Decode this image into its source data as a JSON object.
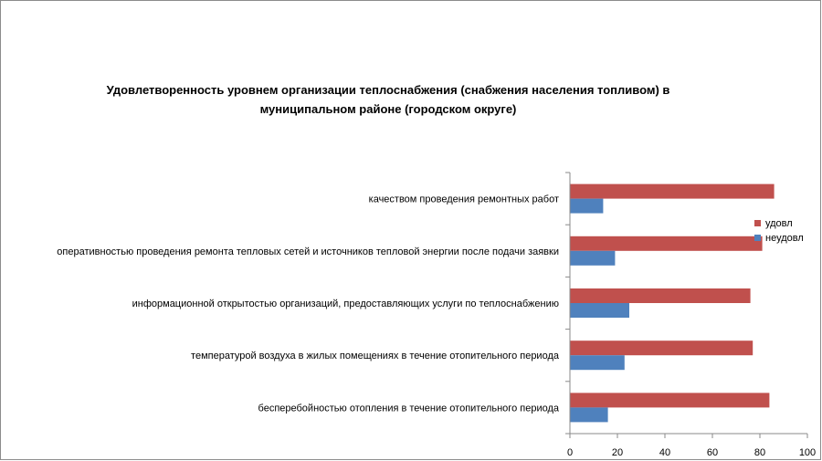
{
  "chart_data": {
    "type": "bar",
    "orientation": "horizontal",
    "title_lines": [
      "Удовлетворенность уровнем организации теплоснабжения (снабжения населения топливом) в",
      "муниципальном районе (городском округе)"
    ],
    "categories": [
      "бесперебойностью отопления в течение отопительного периода",
      "температурой воздуха в жилых помещениях в течение отопительного периода",
      "информационной открытостью организаций, предоставляющих услуги по теплоснабжению",
      "оперативностью проведения ремонта тепловых сетей и источников тепловой энергии после подачи заявки",
      "качеством проведения ремонтных работ"
    ],
    "series": [
      {
        "name": "неудовл",
        "color": "#4f81bd",
        "values": [
          16,
          23,
          25,
          19,
          14
        ]
      },
      {
        "name": "удовл",
        "color": "#c0504d",
        "values": [
          84,
          77,
          76,
          81,
          86
        ]
      }
    ],
    "xlim": [
      0,
      100
    ],
    "xticks": [
      "0",
      "20",
      "40",
      "60",
      "80",
      "100"
    ],
    "grid": false,
    "legend": "right"
  }
}
